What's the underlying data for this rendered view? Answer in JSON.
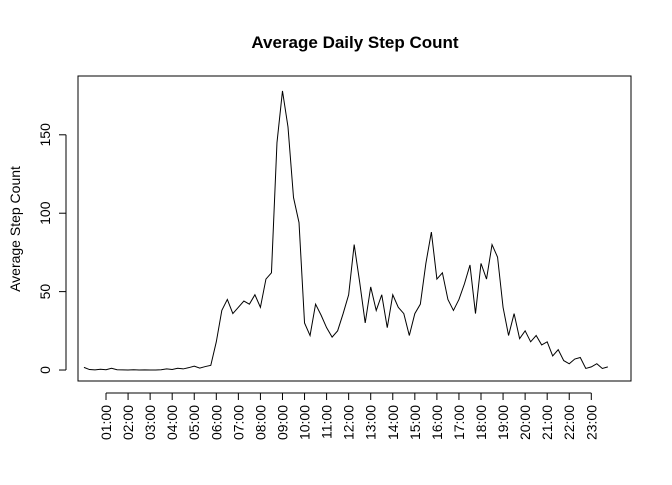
{
  "chart_data": {
    "type": "line",
    "title": "Average Daily Step Count",
    "y_label": "Average Step Count",
    "x": [
      0,
      0.25,
      0.5,
      0.75,
      1,
      1.25,
      1.5,
      1.75,
      2,
      2.25,
      2.5,
      2.75,
      3,
      3.25,
      3.5,
      3.75,
      4,
      4.25,
      4.5,
      4.75,
      5,
      5.25,
      5.5,
      5.75,
      6,
      6.25,
      6.5,
      6.75,
      7,
      7.25,
      7.5,
      7.75,
      8,
      8.25,
      8.5,
      8.75,
      9,
      9.25,
      9.5,
      9.75,
      10,
      10.25,
      10.5,
      10.75,
      11,
      11.25,
      11.5,
      11.75,
      12,
      12.25,
      12.5,
      12.75,
      13,
      13.25,
      13.5,
      13.75,
      14,
      14.25,
      14.5,
      14.75,
      15,
      15.25,
      15.5,
      15.75,
      16,
      16.25,
      16.5,
      16.75,
      17,
      17.25,
      17.5,
      17.75,
      18,
      18.25,
      18.5,
      18.75,
      19,
      19.25,
      19.5,
      19.75,
      20,
      20.25,
      20.5,
      20.75,
      21,
      21.25,
      21.5,
      21.75,
      22,
      22.25,
      22.5,
      22.75,
      23,
      23.25,
      23.5,
      23.75
    ],
    "series": [
      {
        "color": "#000000",
        "values": [
          1.7,
          0.3,
          0.1,
          0.5,
          0.2,
          1.1,
          0.2,
          0.1,
          0,
          0.2,
          0,
          0.1,
          0,
          0,
          0.2,
          0.7,
          0.3,
          1.1,
          0.7,
          1.5,
          2.5,
          1.2,
          2.2,
          3,
          18,
          38,
          45,
          36,
          40,
          44,
          42,
          48,
          40,
          58,
          62,
          145,
          178,
          155,
          110,
          94,
          30,
          22,
          42,
          35,
          27,
          21,
          25,
          36,
          48,
          80,
          56,
          30,
          53,
          38,
          48,
          27,
          48,
          40,
          36,
          22,
          36,
          42,
          68,
          88,
          58,
          62,
          45,
          38,
          45,
          55,
          67,
          36,
          68,
          58,
          80,
          72,
          40,
          22,
          36,
          20,
          25,
          18,
          22,
          16,
          18,
          9,
          13,
          6,
          4,
          7,
          8,
          1,
          2,
          4,
          1,
          2
        ]
      }
    ],
    "xlim": [
      -0.27,
      24.8
    ],
    "ylim": [
      -7,
      187.5
    ],
    "xticks": [
      {
        "value": 1,
        "label": "01:00"
      },
      {
        "value": 2,
        "label": "02:00"
      },
      {
        "value": 3,
        "label": "03:00"
      },
      {
        "value": 4,
        "label": "04:00"
      },
      {
        "value": 5,
        "label": "05:00"
      },
      {
        "value": 6,
        "label": "06:00"
      },
      {
        "value": 7,
        "label": "07:00"
      },
      {
        "value": 8,
        "label": "08:00"
      },
      {
        "value": 9,
        "label": "09:00"
      },
      {
        "value": 10,
        "label": "10:00"
      },
      {
        "value": 11,
        "label": "11:00"
      },
      {
        "value": 12,
        "label": "12:00"
      },
      {
        "value": 13,
        "label": "13:00"
      },
      {
        "value": 14,
        "label": "14:00"
      },
      {
        "value": 15,
        "label": "15:00"
      },
      {
        "value": 16,
        "label": "16:00"
      },
      {
        "value": 17,
        "label": "17:00"
      },
      {
        "value": 18,
        "label": "18:00"
      },
      {
        "value": 19,
        "label": "19:00"
      },
      {
        "value": 20,
        "label": "20:00"
      },
      {
        "value": 21,
        "label": "21:00"
      },
      {
        "value": 22,
        "label": "22:00"
      },
      {
        "value": 23,
        "label": "23:00"
      }
    ],
    "yticks": [
      0,
      50,
      100,
      150
    ]
  }
}
